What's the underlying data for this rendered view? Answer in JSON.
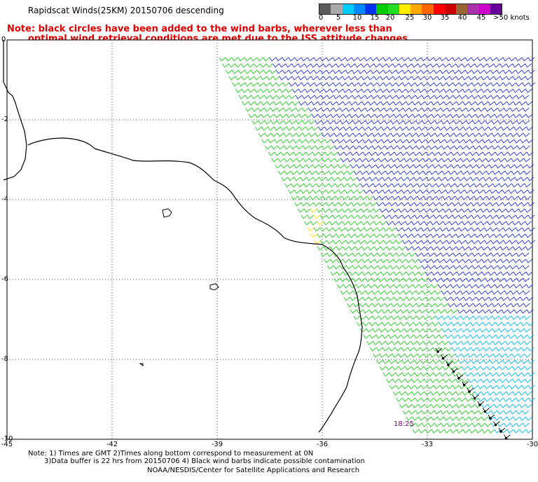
{
  "title": "Rapidscat Winds(25KM) 20150706 descending",
  "note_lines": [
    "Note: black circles have been added to the wind barbs, wherever less than",
    "optimal wind retrieval conditions are met due to the ISS attitude changes."
  ],
  "colorbar": {
    "labels": [
      "0",
      "5",
      "10",
      "15",
      "20",
      "25",
      "30",
      "35",
      "40",
      "45",
      ">50 knots"
    ],
    "colors": [
      "#5a5a5a",
      "#aaaaaa",
      "#00ccff",
      "#0088ff",
      "#0033ee",
      "#00cc00",
      "#22dd22",
      "#ffee00",
      "#ffaa00",
      "#ff6600",
      "#ff0000",
      "#cc0000",
      "#996633",
      "#aa33aa",
      "#cc00cc",
      "#660099"
    ]
  },
  "axes": {
    "y_labels": [
      "0",
      "-2",
      "-4",
      "-6",
      "-8",
      "-10"
    ],
    "x_labels": [
      "-45",
      "-42",
      "-39",
      "-36",
      "-33",
      "-30"
    ],
    "lon_range": [
      -45,
      -30
    ],
    "lat_range": [
      -10,
      0
    ]
  },
  "time_label": "18:25",
  "footer": {
    "line1": "Note: 1) Times are GMT 2)Times along bottom correspond to measurement at 0N",
    "line2": "3)Data buffer is 22 hrs from 20150706 4) Black wind barbs indicate possible contamination",
    "line3": "NOAA/NESDIS/Center for Satellite Applications and Research"
  },
  "barb_colors": {
    "green": "#22cc22",
    "blue": "#2233dd",
    "cyan": "#00bbee",
    "yellow": "#ffdd00",
    "flag": "#000000"
  }
}
